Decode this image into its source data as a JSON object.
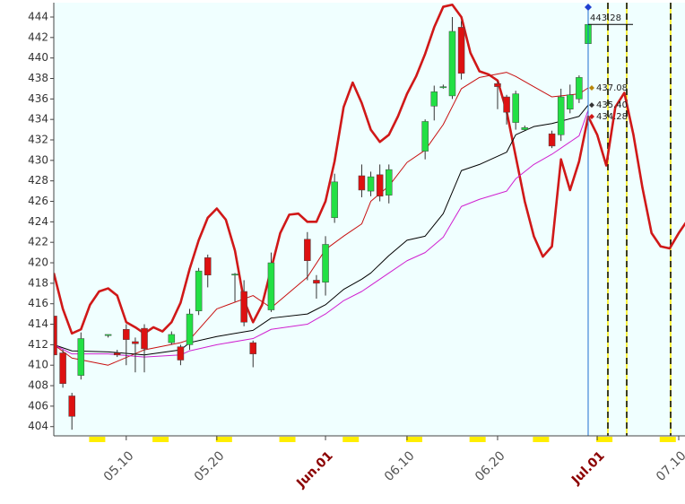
{
  "chart_data": {
    "type": "candlestick",
    "ylim": [
      403.1,
      445.4
    ],
    "yticks": [
      404,
      406,
      408,
      410,
      412,
      414,
      416,
      418,
      420,
      422,
      424,
      426,
      428,
      430,
      432,
      434,
      436,
      438,
      440,
      442,
      444
    ],
    "xlim": [
      "05.02",
      "07.10"
    ],
    "xticks": [
      "05.10",
      "05.20",
      {
        "value": "06.01",
        "label": "Jun.01"
      },
      "06.10",
      "06.20",
      {
        "value": "07.01",
        "label": "Jul.01"
      },
      "07.10"
    ],
    "up_color": "#22e044",
    "down_color": "#dd1111",
    "background": "#f0ffff",
    "candles": {
      "x": [
        "05.02",
        "05.03",
        "05.04",
        "05.05",
        "05.08",
        "05.09",
        "05.10",
        "05.11",
        "05.12",
        "05.15",
        "05.16",
        "05.17",
        "05.18",
        "05.19",
        "05.22",
        "05.23",
        "05.24",
        "05.26",
        "05.30",
        "05.31",
        "06.01",
        "06.02",
        "06.05",
        "06.06",
        "06.07",
        "06.08",
        "06.12",
        "06.13",
        "06.14",
        "06.15",
        "06.16",
        "06.20",
        "06.21",
        "06.22",
        "06.23",
        "06.26",
        "06.27",
        "06.28",
        "06.29",
        "06.30"
      ],
      "open": [
        414.8,
        411.2,
        407.0,
        409.0,
        412.9,
        411.2,
        413.5,
        412.3,
        413.6,
        412.2,
        411.8,
        412.0,
        415.3,
        420.5,
        418.8,
        417.2,
        412.2,
        415.4,
        422.3,
        418.3,
        418.1,
        424.4,
        428.5,
        427.0,
        428.6,
        426.6,
        430.9,
        435.3,
        437.1,
        436.3,
        443.0,
        437.5,
        436.2,
        433.7,
        433.0,
        432.6,
        432.5,
        435.0,
        436.0,
        441.4
      ],
      "high": [
        415.2,
        411.5,
        407.3,
        413.2,
        413.0,
        411.5,
        414.0,
        412.7,
        414.0,
        413.3,
        412.0,
        415.5,
        419.5,
        420.8,
        419.0,
        418.3,
        412.4,
        421.0,
        423.0,
        418.8,
        422.6,
        428.7,
        429.6,
        428.9,
        429.6,
        429.6,
        434.0,
        437.3,
        437.4,
        444.0,
        443.6,
        437.7,
        436.4,
        436.8,
        433.4,
        432.9,
        437.0,
        437.4,
        438.3,
        444.0
      ],
      "low": [
        410.8,
        407.8,
        403.7,
        408.6,
        412.7,
        410.8,
        410.0,
        409.3,
        409.3,
        412.0,
        410.0,
        411.5,
        414.9,
        417.6,
        416.2,
        413.8,
        409.8,
        415.2,
        418.3,
        416.5,
        416.8,
        423.9,
        426.4,
        426.5,
        426.0,
        425.8,
        430.1,
        433.9,
        437.0,
        436.0,
        437.9,
        435.0,
        433.5,
        433.0,
        432.9,
        431.2,
        431.9,
        434.6,
        435.6,
        441.3
      ],
      "close": [
        411.0,
        408.2,
        405.0,
        412.6,
        413.0,
        411.0,
        412.5,
        412.1,
        411.6,
        413.0,
        410.5,
        415.0,
        419.2,
        418.8,
        418.9,
        414.2,
        411.1,
        420.0,
        420.2,
        418.0,
        421.8,
        427.9,
        427.1,
        428.4,
        426.5,
        429.1,
        433.8,
        436.7,
        437.2,
        442.6,
        438.5,
        437.2,
        434.7,
        436.5,
        433.2,
        431.4,
        436.2,
        436.4,
        438.1,
        443.28
      ]
    },
    "lines": [
      {
        "color": "#d01818",
        "line_width": 2.6,
        "x": [
          "05.02",
          "05.03",
          "05.04",
          "05.05",
          "05.06",
          "05.07",
          "05.08",
          "05.09",
          "05.10",
          "05.11",
          "05.12",
          "05.13",
          "05.14",
          "05.15",
          "05.16",
          "05.17",
          "05.18",
          "05.19",
          "05.20",
          "05.21",
          "05.22",
          "05.23",
          "05.24",
          "05.25",
          "05.26",
          "05.27",
          "05.28",
          "05.29",
          "05.30",
          "05.31",
          "06.01",
          "06.02",
          "06.03",
          "06.04",
          "06.05",
          "06.06",
          "06.07",
          "06.08",
          "06.09",
          "06.10",
          "06.11",
          "06.12",
          "06.13",
          "06.14",
          "06.15",
          "06.16",
          "06.17",
          "06.18",
          "06.19",
          "06.20",
          "06.21",
          "06.22",
          "06.23",
          "06.24",
          "06.25",
          "06.26",
          "06.27",
          "06.28",
          "06.29",
          "06.30",
          "07.01",
          "07.02",
          "07.03",
          "07.04",
          "07.05",
          "07.06",
          "07.07",
          "07.08",
          "07.09",
          "07.10",
          "07.11"
        ],
        "values": [
          419.0,
          415.5,
          413.1,
          413.5,
          415.9,
          417.2,
          417.5,
          416.8,
          414.2,
          413.7,
          413.1,
          413.7,
          413.3,
          414.2,
          416.1,
          419.4,
          422.2,
          424.4,
          425.3,
          424.2,
          421.2,
          416.3,
          414.2,
          415.9,
          419.4,
          422.9,
          424.7,
          424.8,
          424.0,
          424.0,
          426.0,
          429.9,
          435.2,
          437.6,
          435.6,
          433.0,
          431.8,
          432.5,
          434.3,
          436.5,
          438.2,
          440.4,
          443.0,
          445.0,
          445.2,
          444.0,
          440.5,
          438.7,
          438.4,
          437.8,
          434.8,
          430.4,
          426.0,
          422.6,
          420.6,
          421.6,
          430.1,
          427.1,
          429.9,
          434.28,
          432.5,
          429.5,
          435.2,
          436.6,
          432.5,
          427.3,
          422.9,
          421.6,
          421.4,
          422.9,
          424.2
        ]
      },
      {
        "color": "#c81010",
        "line_width": 1,
        "x": [
          "05.02",
          "05.04",
          "05.08",
          "05.12",
          "05.16",
          "05.17",
          "05.20",
          "05.24",
          "05.26",
          "05.30",
          "06.01",
          "06.03",
          "06.05",
          "06.06",
          "06.08",
          "06.10",
          "06.12",
          "06.14",
          "06.16",
          "06.18",
          "06.21",
          "06.22",
          "06.24",
          "06.26",
          "06.29",
          "06.30"
        ],
        "values": [
          412.0,
          410.7,
          410.0,
          411.5,
          412.2,
          412.5,
          415.5,
          416.8,
          415.6,
          418.6,
          421.3,
          422.6,
          423.8,
          426.0,
          427.5,
          429.8,
          431.0,
          433.5,
          437.0,
          438.1,
          438.6,
          438.2,
          437.2,
          436.2,
          436.5,
          437.08
        ]
      },
      {
        "color": "#000000",
        "line_width": 1,
        "x": [
          "05.02",
          "05.04",
          "05.08",
          "05.12",
          "05.16",
          "05.17",
          "05.20",
          "05.24",
          "05.26",
          "05.30",
          "06.01",
          "06.03",
          "06.05",
          "06.06",
          "06.08",
          "06.10",
          "06.12",
          "06.14",
          "06.16",
          "06.18",
          "06.21",
          "06.22",
          "06.24",
          "06.26",
          "06.29",
          "06.30"
        ],
        "values": [
          412.0,
          411.4,
          411.3,
          411.0,
          411.5,
          412.2,
          412.8,
          413.4,
          414.6,
          415.0,
          415.9,
          417.4,
          418.4,
          419.0,
          420.7,
          422.2,
          422.6,
          424.8,
          429.0,
          429.6,
          430.8,
          432.5,
          433.3,
          433.6,
          434.3,
          435.4
        ]
      },
      {
        "color": "#d020d0",
        "line_width": 1,
        "x": [
          "05.02",
          "05.04",
          "05.08",
          "05.12",
          "05.16",
          "05.17",
          "05.20",
          "05.24",
          "05.26",
          "05.30",
          "06.01",
          "06.03",
          "06.05",
          "06.06",
          "06.08",
          "06.10",
          "06.12",
          "06.14",
          "06.16",
          "06.18",
          "06.21",
          "06.22",
          "06.24",
          "06.26",
          "06.29",
          "06.30"
        ],
        "values": [
          412.0,
          411.1,
          411.1,
          410.8,
          411.0,
          411.4,
          412.0,
          412.6,
          413.5,
          414.0,
          415.0,
          416.3,
          417.2,
          417.8,
          419.0,
          420.2,
          421.0,
          422.5,
          425.5,
          426.2,
          427.0,
          428.2,
          429.6,
          430.6,
          432.4,
          434.9
        ]
      }
    ],
    "annotations": [
      {
        "value": 443.28,
        "label": "443.28",
        "color": "#000000"
      },
      {
        "value": 437.08,
        "label": "437.08",
        "color": "#b8860b"
      },
      {
        "value": 435.4,
        "label": "435.40",
        "color": "#333333"
      },
      {
        "value": 434.28,
        "label": "434.28",
        "color": "#d01818"
      }
    ]
  }
}
